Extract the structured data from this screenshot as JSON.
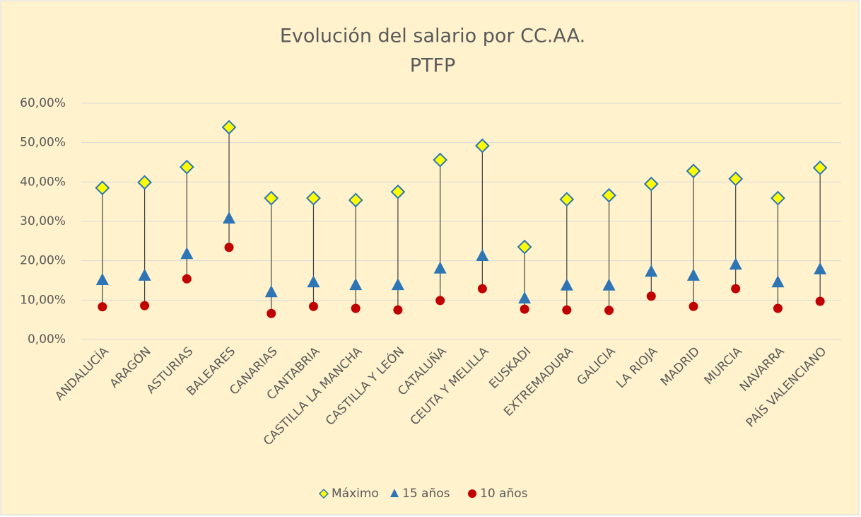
{
  "chart_data": {
    "type": "dot-range",
    "title": [
      "Evolución del salario por CC.AA.",
      "PTFP"
    ],
    "categories": [
      "ANDALUCÍA",
      "ARAGÓN",
      "ASTURIAS",
      "BALEARES",
      "CANARIAS",
      "CANTABRIA",
      "CASTILLA LA MANCHA",
      "CASTILLA Y LEÓN",
      "CATALUÑA",
      "CEUTA Y MELILLA",
      "EUSKADI",
      "EXTREMADURA",
      "GALICIA",
      "LA RIOJA",
      "MADRID",
      "MURCIA",
      "NAVARRA",
      "PAÍS VALENCIANO"
    ],
    "series": [
      {
        "name": "Máximo",
        "color": "#ffff00",
        "marker": "diamond",
        "values": [
          38.5,
          39.9,
          43.8,
          53.9,
          35.9,
          35.9,
          35.4,
          37.5,
          45.6,
          49.2,
          23.5,
          35.6,
          36.6,
          39.5,
          42.8,
          40.8,
          35.9,
          43.6
        ]
      },
      {
        "name": "15 años",
        "color": "#2e75b6",
        "marker": "triangle",
        "values": [
          15.1,
          16.2,
          21.7,
          30.7,
          12,
          14.5,
          13.8,
          13.8,
          18,
          21.2,
          10.4,
          13.7,
          13.7,
          17.2,
          16.2,
          19,
          14.5,
          17.8
        ]
      },
      {
        "name": "10 años",
        "color": "#c00000",
        "marker": "circle",
        "values": [
          8.3,
          8.6,
          15.4,
          23.4,
          6.6,
          8.4,
          7.9,
          7.5,
          9.9,
          12.9,
          7.7,
          7.5,
          7.4,
          11,
          8.4,
          12.9,
          7.9,
          9.7
        ]
      }
    ],
    "ylim": [
      0,
      60
    ],
    "yticks": [
      {
        "value": 0,
        "label": "0,00%"
      },
      {
        "value": 10,
        "label": "10,00%"
      },
      {
        "value": 20,
        "label": "20,00%"
      },
      {
        "value": 30,
        "label": "30,00%"
      },
      {
        "value": 40,
        "label": "40,00%"
      },
      {
        "value": 50,
        "label": "50,00%"
      },
      {
        "value": 60,
        "label": "60,00%"
      }
    ],
    "grid": true,
    "legend": "bottom"
  }
}
